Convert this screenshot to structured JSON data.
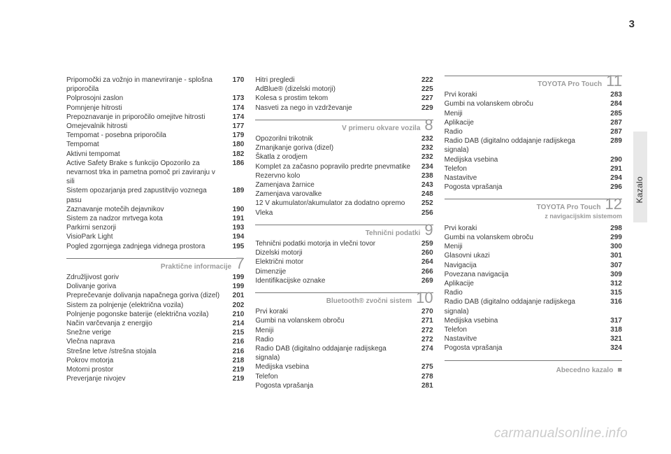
{
  "page_number": "3",
  "side_label": "Kazalo",
  "watermark": "carmanualsonline.info",
  "columns": [
    {
      "blocks": [
        {
          "type": "entries",
          "items": [
            {
              "label": "Pripomočki za vožnjo in manevriranje - splošna priporočila",
              "page": "170"
            },
            {
              "label": "Polprosojni zaslon",
              "page": "173"
            },
            {
              "label": "Pomnjenje hitrosti",
              "page": "174"
            },
            {
              "label": "Prepoznavanje in priporočilo omejitve hitrosti",
              "page": "174"
            },
            {
              "label": "Omejevalnik hitrosti",
              "page": "177"
            },
            {
              "label": "Tempomat - posebna priporočila",
              "page": "179"
            },
            {
              "label": "Tempomat",
              "page": "180"
            },
            {
              "label": "Aktivni tempomat",
              "page": "182"
            },
            {
              "label": "Active Safety Brake s funkcijo Opozorilo za nevarnost trka in pametna pomoč pri zaviranju v sili",
              "page": "186"
            },
            {
              "label": "Sistem opozarjanja pred zapustitvijo voznega pasu",
              "page": "189"
            },
            {
              "label": "Zaznavanje motečih dejavnikov",
              "page": "190"
            },
            {
              "label": "Sistem za nadzor mrtvega kota",
              "page": "191"
            },
            {
              "label": "Parkirni senzorji",
              "page": "193"
            },
            {
              "label": "VisioPark Light",
              "page": "194"
            },
            {
              "label": "Pogled zgornjega zadnjega vidnega prostora",
              "page": "195"
            }
          ]
        },
        {
          "type": "section",
          "title": "Praktične informacije",
          "num": "7",
          "items": [
            {
              "label": "Združljivost goriv",
              "page": "199"
            },
            {
              "label": "Dolivanje goriva",
              "page": "199"
            },
            {
              "label": "Preprečevanje dolivanja napačnega goriva (dizel)",
              "page": "201"
            },
            {
              "label": "Sistem za polnjenje (električna vozila)",
              "page": "202"
            },
            {
              "label": "Polnjenje pogonske baterije (električna vozila)",
              "page": "210"
            },
            {
              "label": "Način varčevanja z energijo",
              "page": "214"
            },
            {
              "label": "Snežne verige",
              "page": "215"
            },
            {
              "label": "Vlečna naprava",
              "page": "216"
            },
            {
              "label": "Strešne letve /strešna stojala",
              "page": "216"
            },
            {
              "label": "Pokrov motorja",
              "page": "218"
            },
            {
              "label": "Motorni prostor",
              "page": "219"
            },
            {
              "label": "Preverjanje nivojev",
              "page": "219"
            }
          ]
        }
      ]
    },
    {
      "blocks": [
        {
          "type": "entries",
          "items": [
            {
              "label": "Hitri pregledi",
              "page": "222"
            },
            {
              "label": "AdBlue® (dizelski motorji)",
              "page": "225"
            },
            {
              "label": "Kolesa s prostim tekom",
              "page": "227"
            },
            {
              "label": "Nasveti za nego in vzdrževanje",
              "page": "229"
            }
          ]
        },
        {
          "type": "section",
          "title": "V primeru okvare vozila",
          "num": "8",
          "items": [
            {
              "label": "Opozorilni trikotnik",
              "page": "232"
            },
            {
              "label": "Zmanjkanje goriva (dizel)",
              "page": "232"
            },
            {
              "label": "Škatla z orodjem",
              "page": "232"
            },
            {
              "label": "Komplet za začasno popravilo predrte pnevmatike",
              "page": "234"
            },
            {
              "label": "Rezervno kolo",
              "page": "238"
            },
            {
              "label": "Zamenjava žarnice",
              "page": "243"
            },
            {
              "label": "Zamenjava varovalke",
              "page": "248"
            },
            {
              "label": "12 V akumulator/akumulator za dodatno opremo",
              "page": "252"
            },
            {
              "label": "Vleka",
              "page": "256"
            }
          ]
        },
        {
          "type": "section",
          "title": "Tehnični podatki",
          "num": "9",
          "items": [
            {
              "label": "Tehnični podatki motorja in vlečni tovor",
              "page": "259"
            },
            {
              "label": "Dizelski motorji",
              "page": "260"
            },
            {
              "label": "Električni motor",
              "page": "264"
            },
            {
              "label": "Dimenzije",
              "page": "266"
            },
            {
              "label": "Identifikacijske oznake",
              "page": "269"
            }
          ]
        },
        {
          "type": "section",
          "title": "Bluetooth® zvočni sistem",
          "num": "10",
          "items": [
            {
              "label": "Prvi koraki",
              "page": "270"
            },
            {
              "label": "Gumbi na volanskem obroču",
              "page": "271"
            },
            {
              "label": "Meniji",
              "page": "272"
            },
            {
              "label": "Radio",
              "page": "272"
            },
            {
              "label": "Radio DAB (digitalno oddajanje radijskega signala)",
              "page": "274"
            },
            {
              "label": "Medijska vsebina",
              "page": "275"
            },
            {
              "label": "Telefon",
              "page": "278"
            },
            {
              "label": "Pogosta vprašanja",
              "page": "281"
            }
          ]
        }
      ]
    },
    {
      "blocks": [
        {
          "type": "section",
          "title": "TOYOTA Pro Touch",
          "num": "11",
          "first": true,
          "items": [
            {
              "label": "Prvi koraki",
              "page": "283"
            },
            {
              "label": "Gumbi na volanskem obroču",
              "page": "284"
            },
            {
              "label": "Meniji",
              "page": "285"
            },
            {
              "label": "Aplikacije",
              "page": "287"
            },
            {
              "label": "Radio",
              "page": "287"
            },
            {
              "label": "Radio DAB (digitalno oddajanje radijskega signala)",
              "page": "289"
            },
            {
              "label": "Medijska vsebina",
              "page": "290"
            },
            {
              "label": "Telefon",
              "page": "291"
            },
            {
              "label": "Nastavitve",
              "page": "294"
            },
            {
              "label": "Pogosta vprašanja",
              "page": "296"
            }
          ]
        },
        {
          "type": "section",
          "title": "TOYOTA Pro Touch",
          "subtitle": "z navigacijskim sistemom",
          "num": "12",
          "items": [
            {
              "label": "Prvi koraki",
              "page": "298"
            },
            {
              "label": "Gumbi na volanskem obroču",
              "page": "299"
            },
            {
              "label": "Meniji",
              "page": "300"
            },
            {
              "label": "Glasovni ukazi",
              "page": "301"
            },
            {
              "label": "Navigacija",
              "page": "307"
            },
            {
              "label": "Povezana navigacija",
              "page": "309"
            },
            {
              "label": "Aplikacije",
              "page": "312"
            },
            {
              "label": "Radio",
              "page": "315"
            },
            {
              "label": "Radio DAB (digitalno oddajanje radijskega signala)",
              "page": "316"
            },
            {
              "label": "Medijska vsebina",
              "page": "317"
            },
            {
              "label": "Telefon",
              "page": "318"
            },
            {
              "label": "Nastavitve",
              "page": "321"
            },
            {
              "label": "Pogosta vprašanja",
              "page": "324"
            }
          ]
        },
        {
          "type": "section",
          "title": "Abecedno kazalo",
          "num": "■",
          "square": true,
          "items": []
        }
      ]
    }
  ]
}
